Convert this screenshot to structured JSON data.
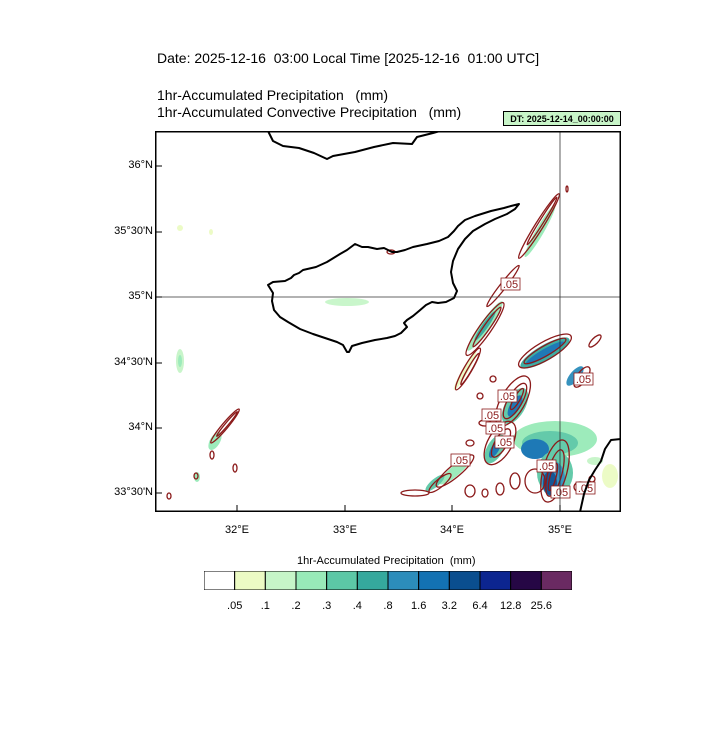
{
  "header": {
    "date_title": "Date: 2025-12-16  03:00 Local Time [2025-12-16  01:00 UTC]",
    "var_line_1": "1hr-Accumulated Precipitation   (mm)",
    "var_line_2": "1hr-Accumulated Convective Precipitation   (mm)",
    "dt_badge": "DT: 2025-12-14_00:00:00"
  },
  "map": {
    "lat_labels": [
      "36°N",
      "35°30'N",
      "35°N",
      "34°30'N",
      "34°N",
      "33°30'N"
    ],
    "lon_labels": [
      "32°E",
      "33°E",
      "34°E",
      "35°E"
    ],
    "contour_labels": [
      ".05",
      ".05",
      ".05",
      ".05",
      ".05",
      ".05",
      ".05",
      ".05",
      ".05",
      ".05"
    ],
    "colors": {
      "coastline": "#000000",
      "gridline": "#333333",
      "contour": "#8b1a1a"
    }
  },
  "legend": {
    "title": "1hr-Accumulated Precipitation  (mm)",
    "labels": [
      ".05",
      ".1",
      ".2",
      ".3",
      ".4",
      ".8",
      "1.6",
      "3.2",
      "6.4",
      "12.8",
      "25.6"
    ],
    "colors": [
      "#ffffff",
      "#ecfbc4",
      "#c6f5c8",
      "#98eab8",
      "#5cc8a6",
      "#35a99d",
      "#2c8dbb",
      "#1372b3",
      "#0a4e8f",
      "#0c2590",
      "#260745",
      "#6a2a62"
    ]
  }
}
